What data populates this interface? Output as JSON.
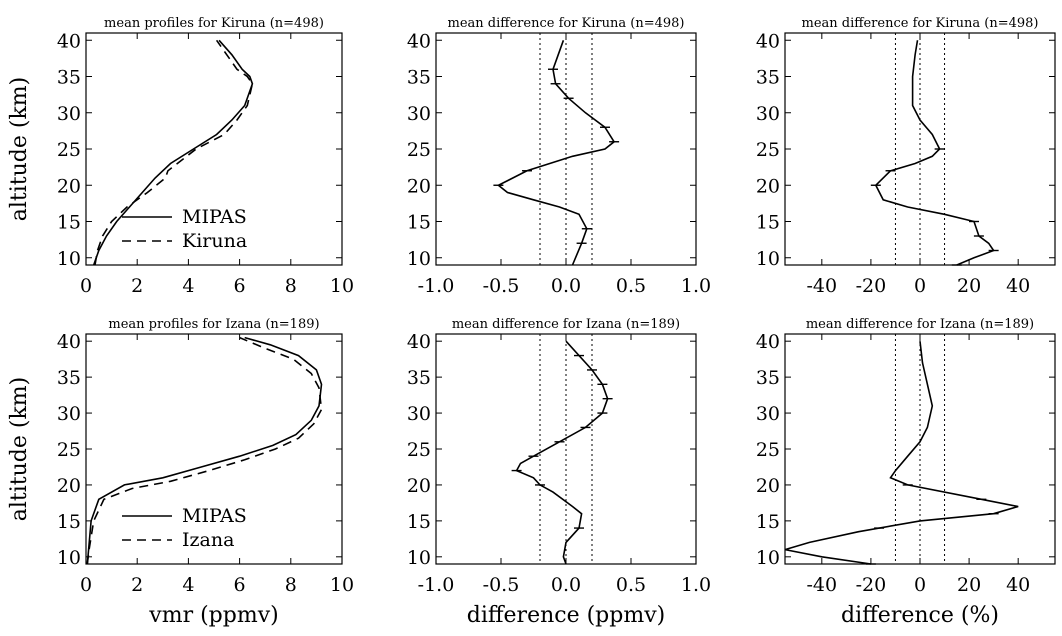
{
  "chart_data": [
    {
      "type": "line",
      "title": "mean profiles  for Kiruna (n=498)",
      "xlabel": "",
      "ylabel": "altitude (km)",
      "xlim": [
        0,
        10
      ],
      "ylim": [
        9,
        41
      ],
      "xticks": [
        "0",
        "2",
        "4",
        "6",
        "8",
        "10"
      ],
      "yticks": [
        "10",
        "15",
        "20",
        "25",
        "30",
        "35",
        "40"
      ],
      "legend": [
        "MIPAS",
        "Kiruna"
      ],
      "series": [
        {
          "name": "MIPAS",
          "style": "solid",
          "x": [
            0.3,
            0.5,
            0.8,
            1.2,
            1.7,
            2.2,
            2.7,
            3.3,
            4.2,
            5.1,
            5.7,
            6.2,
            6.5,
            6.4,
            6.1,
            5.7,
            5.2
          ],
          "y": [
            9,
            11,
            13,
            15,
            17,
            19,
            21,
            23,
            25,
            27,
            29,
            31,
            34,
            35,
            36,
            38,
            40
          ]
        },
        {
          "name": "Kiruna",
          "style": "dashed",
          "x": [
            0.35,
            0.45,
            0.65,
            1.0,
            1.6,
            2.4,
            3.1,
            3.2,
            4.3,
            5.4,
            5.9,
            6.3,
            6.5,
            6.3,
            5.9,
            5.5,
            5.1
          ],
          "y": [
            9,
            11,
            13,
            15,
            17,
            19,
            21,
            22,
            25,
            27,
            29,
            31,
            34,
            35,
            36,
            38,
            40
          ]
        }
      ]
    },
    {
      "type": "line",
      "title": "mean difference  for Kiruna (n=498)",
      "xlabel": "",
      "ylabel": "",
      "xlim": [
        -1.0,
        1.0
      ],
      "ylim": [
        9,
        41
      ],
      "xticks": [
        "-1.0",
        "-0.5",
        "0.0",
        "0.5",
        "1.0"
      ],
      "yticks": [
        "10",
        "15",
        "20",
        "25",
        "30",
        "35",
        "40"
      ],
      "reference_lines_x": [
        -0.2,
        0.0,
        0.2
      ],
      "series": [
        {
          "name": "",
          "style": "solid",
          "x": [
            0.05,
            0.12,
            0.16,
            0.1,
            -0.05,
            -0.25,
            -0.45,
            -0.52,
            -0.3,
            0.05,
            0.3,
            0.37,
            0.3,
            0.15,
            0.02,
            -0.08,
            -0.1,
            -0.06,
            -0.02
          ],
          "y": [
            9,
            12,
            14,
            16,
            17,
            18,
            19,
            20,
            22,
            24,
            25,
            26,
            28,
            30,
            32,
            34,
            36,
            38,
            40
          ],
          "error_bars_y": [
            12,
            14,
            20,
            22,
            26,
            28,
            32,
            34,
            36
          ]
        }
      ]
    },
    {
      "type": "line",
      "title": "mean difference  for Kiruna (n=498)",
      "xlabel": "",
      "ylabel": "",
      "xlim": [
        -55,
        55
      ],
      "ylim": [
        9,
        41
      ],
      "xticks": [
        "-40",
        "-20",
        "0",
        "20",
        "40"
      ],
      "yticks": [
        "10",
        "15",
        "20",
        "25",
        "30",
        "35",
        "40"
      ],
      "reference_lines_x": [
        -10,
        0,
        10
      ],
      "series": [
        {
          "name": "",
          "style": "solid",
          "x": [
            15,
            22,
            30,
            28,
            24,
            22,
            10,
            -5,
            -15,
            -18,
            -12,
            -2,
            5,
            8,
            5,
            0,
            -3,
            -3,
            -2,
            -1
          ],
          "y": [
            9,
            10,
            11,
            12,
            13,
            15,
            16,
            17,
            18,
            20,
            22,
            23,
            24,
            25,
            27,
            29,
            31,
            35,
            38,
            40
          ],
          "error_bars_y": [
            9,
            11,
            13,
            15,
            20,
            22,
            25
          ]
        }
      ]
    },
    {
      "type": "line",
      "title": "mean profiles  for Izana (n=189)",
      "xlabel": "vmr (ppmv)",
      "ylabel": "altitude (km)",
      "xlim": [
        0,
        10
      ],
      "ylim": [
        9,
        41
      ],
      "xticks": [
        "0",
        "2",
        "4",
        "6",
        "8",
        "10"
      ],
      "yticks": [
        "10",
        "15",
        "20",
        "25",
        "30",
        "35",
        "40"
      ],
      "legend": [
        "MIPAS",
        "Izana"
      ],
      "series": [
        {
          "name": "MIPAS",
          "style": "solid",
          "x": [
            0.05,
            0.1,
            0.2,
            0.5,
            1.5,
            3.0,
            4.5,
            6.0,
            7.3,
            8.2,
            8.8,
            9.1,
            9.2,
            9.0,
            8.3,
            7.2,
            6.2
          ],
          "y": [
            9,
            11,
            15,
            18,
            20,
            21,
            22.5,
            24,
            25.5,
            27,
            29,
            31,
            34,
            36,
            38,
            39.5,
            40.5
          ]
        },
        {
          "name": "Izana",
          "style": "dashed",
          "x": [
            0.05,
            0.12,
            0.3,
            0.7,
            1.8,
            3.3,
            4.8,
            6.2,
            7.4,
            8.3,
            8.9,
            9.2,
            9.1,
            8.8,
            8.1,
            7.0,
            6.0
          ],
          "y": [
            9,
            11,
            15,
            18,
            19.5,
            20.5,
            22,
            23.5,
            25,
            26.5,
            28.5,
            30.5,
            33.5,
            35.5,
            37.5,
            39,
            40.5
          ]
        }
      ]
    },
    {
      "type": "line",
      "title": "mean difference  for Izana (n=189)",
      "xlabel": "difference (ppmv)",
      "ylabel": "",
      "xlim": [
        -1.0,
        1.0
      ],
      "ylim": [
        9,
        41
      ],
      "xticks": [
        "-1.0",
        "-0.5",
        "0.0",
        "0.5",
        "1.0"
      ],
      "yticks": [
        "10",
        "15",
        "20",
        "25",
        "30",
        "35",
        "40"
      ],
      "reference_lines_x": [
        -0.2,
        0.0,
        0.2
      ],
      "series": [
        {
          "name": "",
          "style": "solid",
          "x": [
            0.0,
            -0.02,
            0.0,
            0.1,
            0.12,
            0.05,
            -0.1,
            -0.2,
            -0.25,
            -0.38,
            -0.35,
            -0.25,
            -0.05,
            0.15,
            0.28,
            0.32,
            0.28,
            0.2,
            0.0
          ],
          "y": [
            9,
            10,
            12,
            14,
            16,
            17,
            19,
            20,
            21,
            22,
            23,
            24,
            26,
            28,
            30,
            32,
            34,
            36,
            40
          ],
          "error_bars_y": [
            14,
            20,
            22,
            24,
            26,
            28,
            30,
            32,
            34,
            36,
            38
          ]
        }
      ]
    },
    {
      "type": "line",
      "title": "mean difference  for Izana (n=189)",
      "xlabel": "difference (%)",
      "ylabel": "",
      "xlim": [
        -55,
        55
      ],
      "ylim": [
        9,
        41
      ],
      "xticks": [
        "-40",
        "-20",
        "0",
        "20",
        "40"
      ],
      "yticks": [
        "10",
        "15",
        "20",
        "25",
        "30",
        "35",
        "40"
      ],
      "reference_lines_x": [
        -10,
        0,
        10
      ],
      "series": [
        {
          "name": "",
          "style": "solid",
          "x": [
            -20,
            -40,
            -55,
            -45,
            -25,
            0,
            30,
            40,
            25,
            -5,
            -12,
            -10,
            -5,
            0,
            3,
            5,
            3,
            1,
            0
          ],
          "y": [
            9,
            10,
            11,
            12,
            13.5,
            15,
            16,
            17,
            18,
            20,
            21,
            22,
            24,
            26,
            28,
            31,
            34,
            37,
            40
          ],
          "error_bars_y": [
            9,
            14,
            16,
            18,
            20
          ]
        }
      ]
    }
  ]
}
